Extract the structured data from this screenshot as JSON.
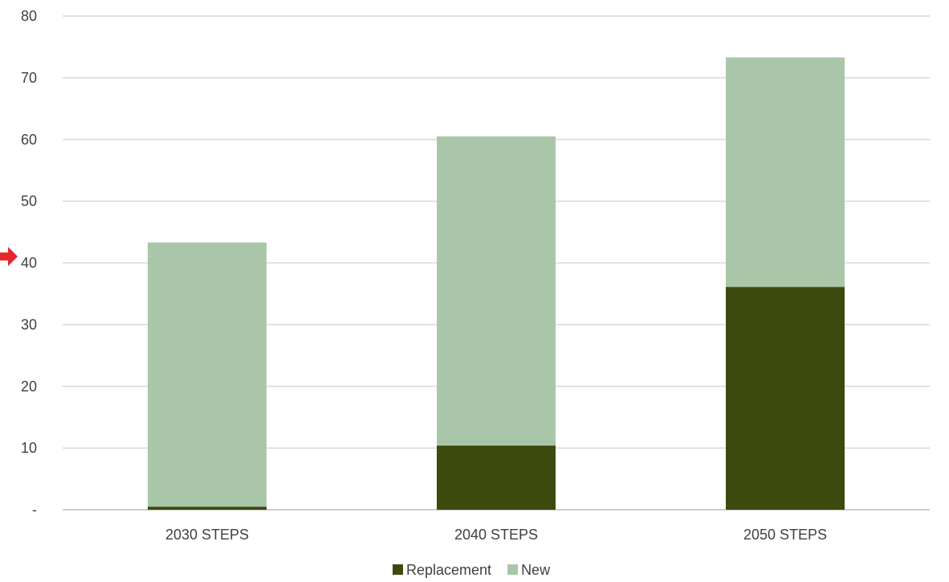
{
  "chart_data": {
    "type": "bar",
    "stacked": true,
    "categories": [
      "2030 STEPS",
      "2040 STEPS",
      "2050 STEPS"
    ],
    "series": [
      {
        "name": "Replacement",
        "values": [
          0.5,
          10.4,
          36.1
        ],
        "color": "#3d4a0e"
      },
      {
        "name": "New",
        "values": [
          42.8,
          50.1,
          37.2
        ],
        "color": "#a9c7a8"
      }
    ],
    "y_tick_labels": [
      "-",
      "10",
      "20",
      "30",
      "40",
      "50",
      "60",
      "70",
      "80"
    ],
    "y_ticks": [
      0,
      10,
      20,
      30,
      40,
      50,
      60,
      70,
      80
    ],
    "ylim": [
      0,
      80
    ],
    "grid": true,
    "legend_position": "bottom",
    "annotation": {
      "type": "arrow",
      "color": "#e8252b",
      "points_to_y": 40
    }
  }
}
